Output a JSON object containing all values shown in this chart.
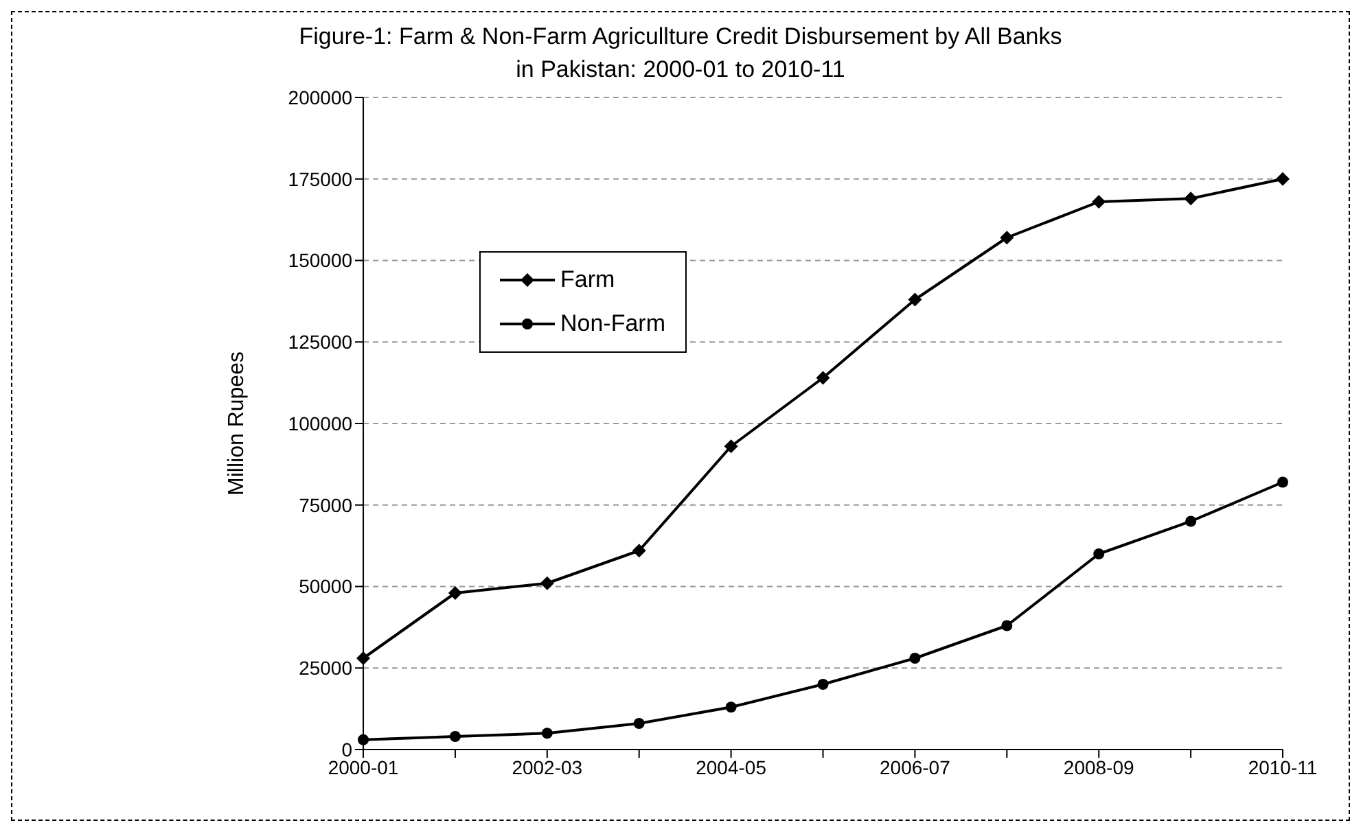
{
  "chart_data": {
    "type": "line",
    "title": "Figure-1:  Farm & Non-Farm Agricullture Credit Disbursement by All Banks in Pakistan: 2000-01 to 2010-11",
    "ylabel": "Million Rupees",
    "categories": [
      "2000-01",
      null,
      "2002-03",
      null,
      "2004-05",
      null,
      "2006-07",
      null,
      "2008-09",
      null,
      "2010-11"
    ],
    "series": [
      {
        "name": "Farm",
        "color": "#000000",
        "marker": "diamond",
        "values": [
          28000,
          48000,
          51000,
          61000,
          93000,
          114000,
          138000,
          157000,
          168000,
          169000,
          175000
        ]
      },
      {
        "name": "Non-Farm",
        "color": "#000000",
        "marker": "circle",
        "values": [
          3000,
          4000,
          5000,
          8000,
          13000,
          20000,
          28000,
          38000,
          60000,
          70000,
          82000
        ]
      }
    ],
    "ylim": [
      0,
      200000
    ],
    "yticks": [
      0,
      25000,
      50000,
      75000,
      100000,
      125000,
      150000,
      175000,
      200000
    ],
    "grid": "y",
    "legend": "top left"
  }
}
